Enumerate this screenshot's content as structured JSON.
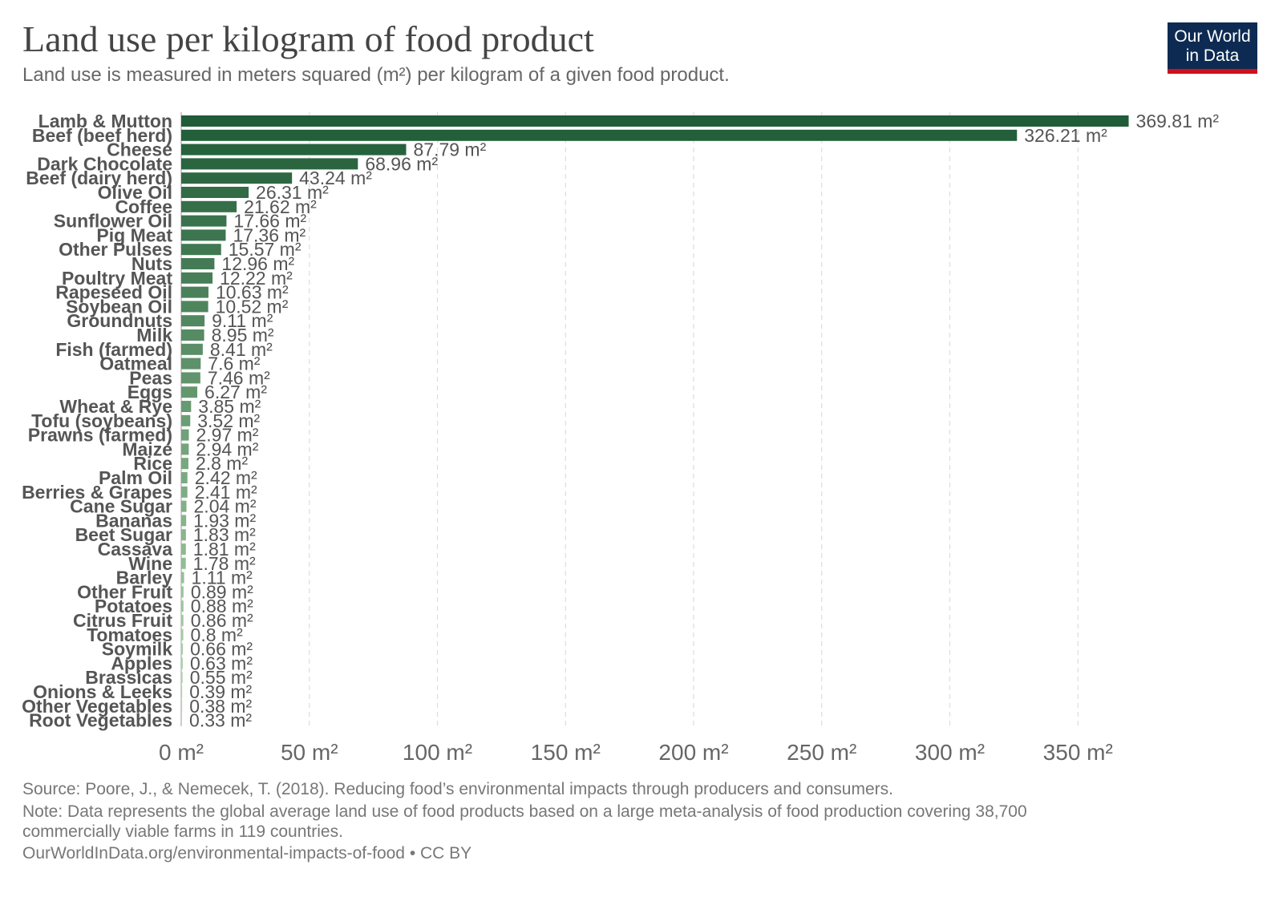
{
  "header": {
    "title": "Land use per kilogram of food product",
    "subtitle": "Land use is measured in meters squared (m²) per kilogram of a given food product.",
    "logo_line1": "Our World",
    "logo_line2": "in Data"
  },
  "footer": {
    "source": "Source: Poore, J., & Nemecek, T. (2018). Reducing food’s environmental impacts through producers and consumers.",
    "note_line1": "Note: Data represents the global average land use of food products based on a large meta-analysis of food production covering 38,700",
    "note_line2": "commercially viable farms in 119 countries.",
    "url": "OurWorldInData.org/environmental-impacts-of-food • CC BY"
  },
  "chart_data": {
    "type": "bar",
    "orientation": "horizontal",
    "unit": "m²",
    "xlim": [
      0,
      370
    ],
    "grid": true,
    "x_ticks": [
      0,
      50,
      100,
      150,
      200,
      250,
      300,
      350
    ],
    "x_tick_labels": [
      "0 m²",
      "50 m²",
      "100 m²",
      "150 m²",
      "200 m²",
      "250 m²",
      "300 m²",
      "350 m²"
    ],
    "bar_color_dark": "#1f5c37",
    "bar_color_light": "#b9dfb3",
    "categories": [
      "Lamb & Mutton",
      "Beef (beef herd)",
      "Cheese",
      "Dark Chocolate",
      "Beef (dairy herd)",
      "Olive Oil",
      "Coffee",
      "Sunflower Oil",
      "Pig Meat",
      "Other Pulses",
      "Nuts",
      "Poultry Meat",
      "Rapeseed Oil",
      "Soybean Oil",
      "Groundnuts",
      "Milk",
      "Fish (farmed)",
      "Oatmeal",
      "Peas",
      "Eggs",
      "Wheat & Rye",
      "Tofu (soybeans)",
      "Prawns (farmed)",
      "Maize",
      "Rice",
      "Palm Oil",
      "Berries & Grapes",
      "Cane Sugar",
      "Bananas",
      "Beet Sugar",
      "Cassava",
      "Wine",
      "Barley",
      "Other Fruit",
      "Potatoes",
      "Citrus Fruit",
      "Tomatoes",
      "Soymilk",
      "Apples",
      "Brassicas",
      "Onions & Leeks",
      "Other Vegetables",
      "Root Vegetables"
    ],
    "values": [
      369.81,
      326.21,
      87.79,
      68.96,
      43.24,
      26.31,
      21.62,
      17.66,
      17.36,
      15.57,
      12.96,
      12.22,
      10.63,
      10.52,
      9.11,
      8.95,
      8.41,
      7.6,
      7.46,
      6.27,
      3.85,
      3.52,
      2.97,
      2.94,
      2.8,
      2.42,
      2.41,
      2.04,
      1.93,
      1.83,
      1.81,
      1.78,
      1.11,
      0.89,
      0.88,
      0.86,
      0.8,
      0.66,
      0.63,
      0.55,
      0.39,
      0.38,
      0.33
    ],
    "value_labels": [
      "369.81 m²",
      "326.21 m²",
      "87.79 m²",
      "68.96 m²",
      "43.24 m²",
      "26.31 m²",
      "21.62 m²",
      "17.66 m²",
      "17.36 m²",
      "15.57 m²",
      "12.96 m²",
      "12.22 m²",
      "10.63 m²",
      "10.52 m²",
      "9.11 m²",
      "8.95 m²",
      "8.41 m²",
      "7.6 m²",
      "7.46 m²",
      "6.27 m²",
      "3.85 m²",
      "3.52 m²",
      "2.97 m²",
      "2.94 m²",
      "2.8 m²",
      "2.42 m²",
      "2.41 m²",
      "2.04 m²",
      "1.93 m²",
      "1.83 m²",
      "1.81 m²",
      "1.78 m²",
      "1.11 m²",
      "0.89 m²",
      "0.88 m²",
      "0.86 m²",
      "0.8 m²",
      "0.66 m²",
      "0.63 m²",
      "0.55 m²",
      "0.39 m²",
      "0.38 m²",
      "0.33 m²"
    ]
  }
}
